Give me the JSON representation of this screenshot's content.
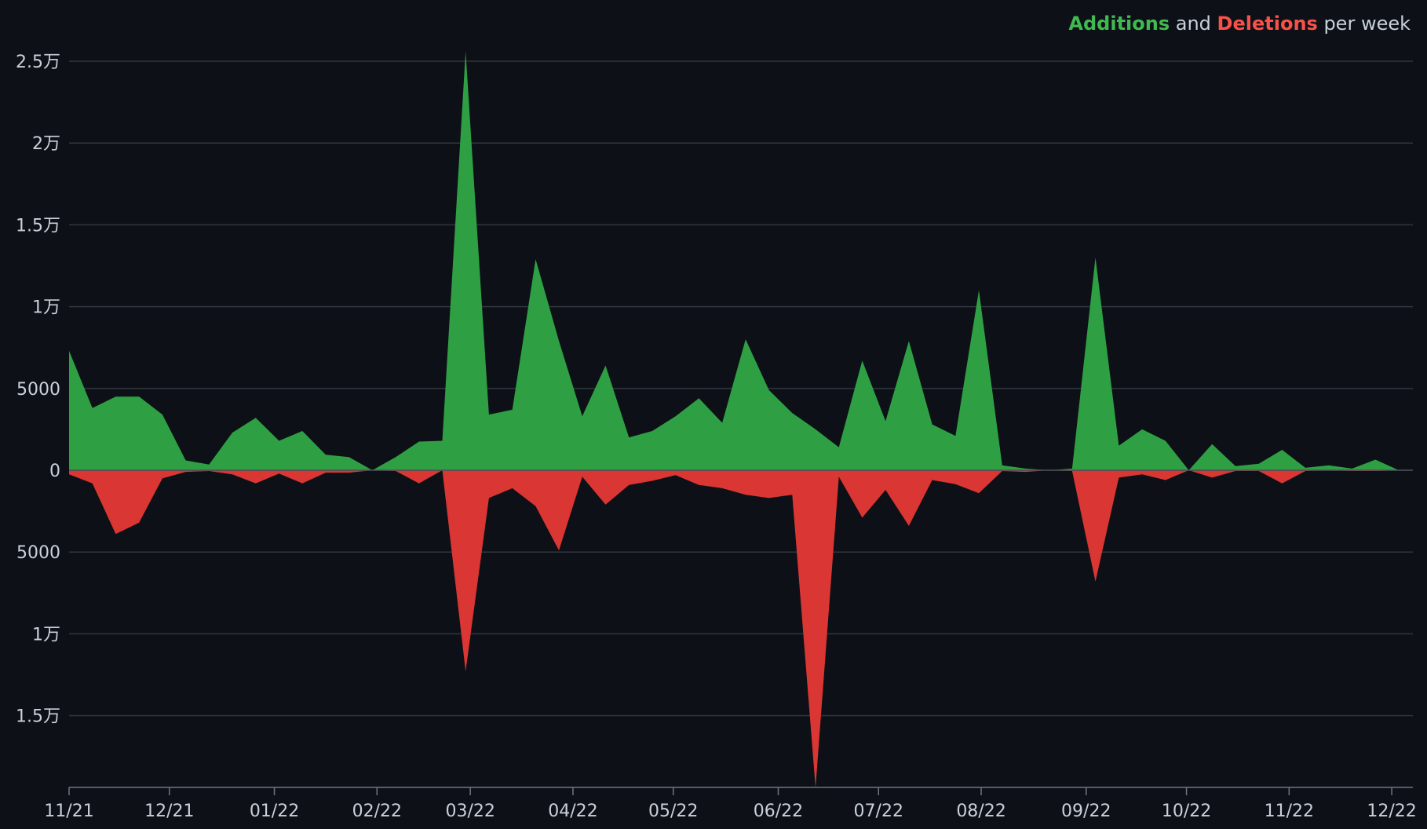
{
  "chart_data": {
    "type": "area",
    "legend": {
      "position": "top-right",
      "parts": [
        {
          "text": "Additions",
          "role": "additions"
        },
        {
          "text": " and ",
          "role": "plain"
        },
        {
          "text": "Deletions",
          "role": "deletions"
        },
        {
          "text": " per week",
          "role": "plain"
        }
      ]
    },
    "colors": {
      "additions": "#2ea043",
      "deletions": "#da3633",
      "additions_legend": "#3fb950",
      "deletions_legend": "#f85149",
      "text": "#c9d1d9",
      "background": "#0d1117",
      "grid": "#30363d"
    },
    "y_ticks": [
      {
        "value": 25000,
        "label": "2.5万"
      },
      {
        "value": 20000,
        "label": "2万"
      },
      {
        "value": 15000,
        "label": "1.5万"
      },
      {
        "value": 10000,
        "label": "1万"
      },
      {
        "value": 5000,
        "label": "5000"
      },
      {
        "value": 0,
        "label": "0"
      },
      {
        "value": -5000,
        "label": "5000"
      },
      {
        "value": -10000,
        "label": "1万"
      },
      {
        "value": -15000,
        "label": "1.5万"
      }
    ],
    "ylim": [
      -19500,
      26000
    ],
    "x_ticks": [
      "11/21",
      "12/21",
      "01/22",
      "02/22",
      "03/22",
      "04/22",
      "05/22",
      "06/22",
      "07/22",
      "08/22",
      "09/22",
      "10/22",
      "11/22",
      "12/22"
    ],
    "x_tick_week_index": [
      0,
      4.3,
      8.8,
      13.2,
      17.2,
      21.6,
      25.9,
      30.4,
      34.7,
      39.1,
      43.6,
      47.9,
      52.3,
      56.7
    ],
    "grid": true,
    "series": [
      {
        "name": "Additions",
        "role": "additions",
        "values": [
          7300,
          3800,
          4500,
          4500,
          3400,
          600,
          350,
          2300,
          3200,
          1800,
          2400,
          950,
          800,
          0,
          800,
          1750,
          1800,
          25600,
          3400,
          3700,
          12900,
          7900,
          3300,
          6400,
          2000,
          2400,
          3300,
          4400,
          2900,
          8000,
          4900,
          3500,
          2500,
          1400,
          6700,
          3000,
          7900,
          2800,
          2100,
          11000,
          300,
          100,
          0,
          100,
          13000,
          1500,
          2500,
          1800,
          0,
          1600,
          250,
          400,
          1250,
          150,
          300,
          100,
          650,
          0
        ]
      },
      {
        "name": "Deletions",
        "role": "deletions",
        "values": [
          -250,
          -800,
          -3900,
          -3200,
          -500,
          -100,
          -50,
          -250,
          -800,
          -200,
          -800,
          -150,
          -150,
          0,
          -50,
          -800,
          0,
          -12300,
          -1700,
          -1100,
          -2200,
          -4900,
          -400,
          -2100,
          -900,
          -650,
          -300,
          -900,
          -1100,
          -1500,
          -1700,
          -1500,
          -19400,
          -400,
          -2900,
          -1200,
          -3400,
          -600,
          -850,
          -1400,
          -50,
          -100,
          0,
          -50,
          -6800,
          -450,
          -250,
          -600,
          0,
          -450,
          -50,
          -50,
          -800,
          -50,
          0,
          -50,
          -50,
          0
        ]
      }
    ]
  }
}
